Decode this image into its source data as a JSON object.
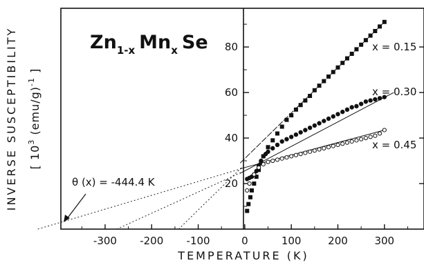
{
  "chart_data": {
    "type": "scatter",
    "title": {
      "parts": [
        {
          "text": "Zn",
          "sub": false
        },
        {
          "text": "1-x",
          "sub": true
        },
        {
          "text": "Mn",
          "sub": false
        },
        {
          "text": "x",
          "sub": true
        },
        {
          "text": "Se",
          "sub": false
        }
      ]
    },
    "xlabel": "TEMPERATURE (K)",
    "ylabel_line1": "INVERSE SUSCEPTIBILITY",
    "ylabel_line2": {
      "prefix": "[ 10",
      "sup": "3",
      "suffix": " (emu/g)",
      "sup2": "-1",
      "close": " ]"
    },
    "xlim": [
      -395,
      385
    ],
    "ylim": [
      0,
      97
    ],
    "x_ticks": [
      -300,
      -200,
      -100,
      0,
      100,
      200,
      300
    ],
    "x_tick_labels": [
      "-300",
      "-200",
      "-100",
      "0",
      "100",
      "200",
      "300"
    ],
    "y_ticks": [
      20,
      40,
      60,
      80
    ],
    "y_tick_labels": [
      "20",
      "40",
      "60",
      "80"
    ],
    "theta_annotation": "θ (x) = -444.4 K",
    "series": [
      {
        "name": "x = 0.15",
        "marker": "square-filled",
        "x": [
          5,
          8,
          12,
          15,
          20,
          25,
          30,
          35,
          40,
          50,
          60,
          70,
          80,
          90,
          100,
          110,
          120,
          130,
          140,
          150,
          160,
          170,
          180,
          190,
          200,
          210,
          220,
          230,
          240,
          250,
          260,
          270,
          280,
          290,
          300
        ],
        "y": [
          8,
          11,
          14,
          17,
          20,
          23,
          26,
          29,
          32,
          36,
          39,
          42,
          45,
          48,
          50,
          52.5,
          54.5,
          56.5,
          58.5,
          61,
          63,
          65,
          67,
          69,
          71,
          73,
          75,
          77,
          79,
          81,
          83,
          85,
          87,
          89,
          91
        ],
        "fit_line": {
          "x": [
            -10,
            300
          ],
          "y": [
            29,
            91
          ]
        },
        "extrapolation": {
          "x": [
            -142,
            0
          ],
          "y": [
            0,
            28.4
          ]
        }
      },
      {
        "name": "x = 0.30",
        "marker": "circle-filled",
        "x": [
          5,
          10,
          15,
          20,
          25,
          30,
          35,
          40,
          45,
          50,
          60,
          70,
          80,
          90,
          100,
          110,
          120,
          130,
          140,
          150,
          160,
          170,
          180,
          190,
          200,
          210,
          220,
          230,
          240,
          250,
          260,
          270,
          280,
          290,
          300
        ],
        "y": [
          22,
          22.5,
          23,
          24,
          25.5,
          28,
          30,
          32,
          33,
          34,
          35.5,
          37,
          38.5,
          39.5,
          40.5,
          41.5,
          42.5,
          43.5,
          44.5,
          45.5,
          46.5,
          47.5,
          48.5,
          49.5,
          50.5,
          51.5,
          52.5,
          53.5,
          54,
          55,
          56,
          56.5,
          57,
          57.5,
          58
        ],
        "fit_line": {
          "x": [
            -10,
            320
          ],
          "y": [
            24.5,
            60
          ]
        },
        "extrapolation": {
          "x": [
            -275,
            0
          ],
          "y": [
            0,
            25.6
          ]
        }
      },
      {
        "name": "x = 0.45",
        "marker": "circle-open",
        "x": [
          5,
          10,
          20,
          30,
          40,
          50,
          60,
          70,
          80,
          90,
          100,
          110,
          120,
          130,
          140,
          150,
          160,
          170,
          180,
          190,
          200,
          210,
          220,
          230,
          240,
          250,
          260,
          270,
          280,
          290,
          300
        ],
        "y": [
          17,
          20,
          24,
          27,
          28.5,
          29.5,
          30,
          30.5,
          31,
          31.5,
          32,
          32.5,
          33,
          33.5,
          34,
          34.5,
          35,
          35.5,
          36,
          36.5,
          37,
          37.5,
          38,
          38.5,
          39,
          39.5,
          40,
          40.5,
          41,
          42,
          43.5
        ],
        "fit_line": {
          "x": [
            -10,
            300
          ],
          "y": [
            26.5,
            43.5
          ]
        },
        "extrapolation": {
          "x": [
            -444.4,
            0
          ],
          "y": [
            0,
            27
          ]
        }
      }
    ],
    "grid": false
  }
}
